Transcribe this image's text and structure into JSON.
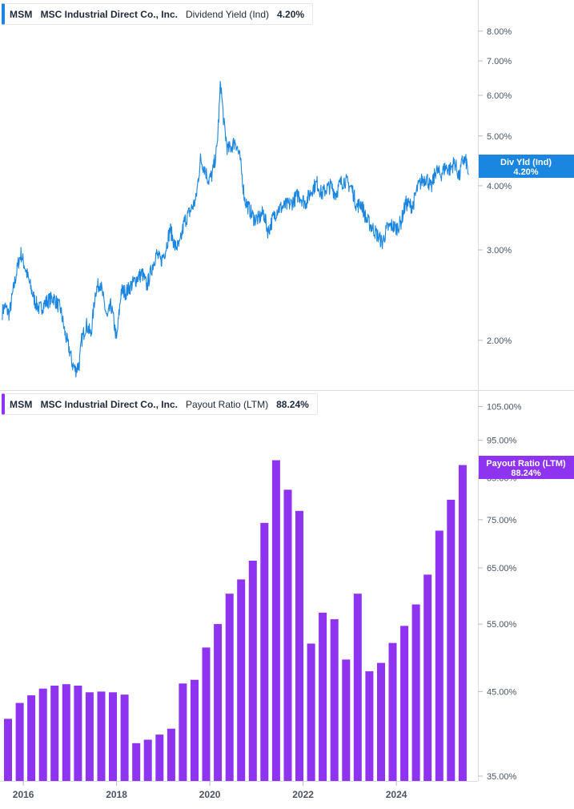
{
  "chart_data": [
    {
      "type": "line",
      "ticker": "MSM",
      "company": "MSC Industrial Direct Co., Inc.",
      "metric": "Dividend Yield (Ind)",
      "current_value": "4.20%",
      "current_badge": {
        "line1": "Div Yld (Ind)",
        "line2": "4.20%"
      },
      "color": "#1a86e0",
      "scale": "log",
      "ylim": [
        1.6,
        9.2
      ],
      "y_ticks": [
        "2.00%",
        "3.00%",
        "4.00%",
        "5.00%",
        "6.00%",
        "7.00%",
        "8.00%"
      ],
      "y_tick_values": [
        2,
        3,
        4,
        5,
        6,
        7,
        8
      ],
      "x_range": [
        2015.5,
        2025.75
      ],
      "x": [
        2015.55,
        2015.6,
        2015.7,
        2015.8,
        2015.9,
        2015.95,
        2016.05,
        2016.15,
        2016.25,
        2016.35,
        2016.5,
        2016.65,
        2016.8,
        2016.9,
        2017.0,
        2017.05,
        2017.12,
        2017.2,
        2017.25,
        2017.35,
        2017.45,
        2017.55,
        2017.65,
        2017.7,
        2017.8,
        2017.88,
        2017.95,
        2018.0,
        2018.1,
        2018.2,
        2018.3,
        2018.45,
        2018.55,
        2018.65,
        2018.75,
        2018.85,
        2018.95,
        2019.05,
        2019.15,
        2019.25,
        2019.35,
        2019.45,
        2019.6,
        2019.7,
        2019.8,
        2019.9,
        2019.97,
        2020.05,
        2020.15,
        2020.2,
        2020.23,
        2020.3,
        2020.38,
        2020.45,
        2020.55,
        2020.65,
        2020.75,
        2020.85,
        2020.95,
        2021.05,
        2021.15,
        2021.25,
        2021.35,
        2021.45,
        2021.6,
        2021.75,
        2021.9,
        2022.05,
        2022.2,
        2022.3,
        2022.4,
        2022.5,
        2022.6,
        2022.7,
        2022.8,
        2022.9,
        2023.05,
        2023.15,
        2023.25,
        2023.35,
        2023.5,
        2023.6,
        2023.7,
        2023.8,
        2023.9,
        2024.0,
        2024.1,
        2024.2,
        2024.35,
        2024.45,
        2024.55,
        2024.65,
        2024.75,
        2024.85,
        2024.95,
        2025.05,
        2025.15,
        2025.25,
        2025.35,
        2025.42,
        2025.5,
        2025.55
      ],
      "y": [
        2.27,
        2.33,
        2.25,
        2.55,
        2.85,
        2.95,
        2.75,
        2.55,
        2.38,
        2.3,
        2.38,
        2.42,
        2.3,
        2.05,
        1.9,
        1.8,
        1.75,
        1.8,
        2.0,
        2.15,
        2.05,
        2.5,
        2.6,
        2.45,
        2.2,
        2.35,
        2.15,
        2.0,
        2.5,
        2.48,
        2.55,
        2.65,
        2.7,
        2.55,
        2.75,
        2.95,
        2.85,
        3.0,
        3.3,
        3.05,
        3.05,
        3.4,
        3.6,
        3.75,
        4.5,
        4.3,
        4.1,
        4.2,
        4.7,
        5.6,
        6.4,
        5.3,
        4.7,
        4.75,
        4.9,
        4.5,
        3.75,
        3.6,
        3.45,
        3.45,
        3.55,
        3.25,
        3.45,
        3.6,
        3.65,
        3.7,
        3.85,
        3.7,
        3.95,
        4.05,
        3.85,
        3.95,
        4.0,
        3.85,
        4.05,
        4.1,
        3.95,
        3.65,
        3.7,
        3.45,
        3.3,
        3.2,
        3.1,
        3.3,
        3.35,
        3.3,
        3.4,
        3.7,
        3.65,
        3.95,
        4.1,
        4.15,
        3.95,
        4.3,
        4.2,
        4.35,
        4.3,
        4.45,
        4.15,
        4.5,
        4.45,
        4.2
      ]
    },
    {
      "type": "bar",
      "ticker": "MSM",
      "company": "MSC Industrial Direct Co., Inc.",
      "metric": "Payout Ratio (LTM)",
      "current_value": "88.24%",
      "current_badge": {
        "line1": "Payout Ratio (LTM)",
        "line2": "88.24%"
      },
      "color": "#8e33f0",
      "scale": "log",
      "ylim": [
        34.5,
        110
      ],
      "y_ticks": [
        "35.00%",
        "45.00%",
        "55.00%",
        "65.00%",
        "75.00%",
        "85.00%",
        "95.00%",
        "105.00%"
      ],
      "y_tick_values": [
        35,
        45,
        55,
        65,
        75,
        85,
        95,
        105
      ],
      "x_range": [
        2015.5,
        2025.75
      ],
      "x": [
        2015.5,
        2015.75,
        2016.0,
        2016.25,
        2016.5,
        2016.75,
        2017.0,
        2017.25,
        2017.5,
        2017.75,
        2018.0,
        2018.25,
        2018.5,
        2018.75,
        2019.0,
        2019.25,
        2019.5,
        2019.75,
        2020.0,
        2020.25,
        2020.5,
        2020.75,
        2021.0,
        2021.25,
        2021.5,
        2021.75,
        2022.0,
        2022.25,
        2022.5,
        2022.75,
        2023.0,
        2023.25,
        2023.5,
        2023.75,
        2024.0,
        2024.25,
        2024.5,
        2024.75,
        2025.0,
        2025.25
      ],
      "values": [
        41.5,
        43.5,
        44.5,
        45.4,
        45.8,
        46.0,
        45.8,
        44.9,
        45.0,
        44.9,
        44.6,
        38.6,
        39.0,
        39.6,
        40.3,
        46.1,
        46.6,
        51.3,
        55.0,
        60.2,
        62.8,
        66.4,
        74.3,
        89.5,
        82.0,
        77.0,
        51.9,
        56.9,
        55.8,
        49.5,
        60.2,
        47.8,
        49.0,
        52.0,
        54.7,
        58.3,
        63.7,
        72.6,
        79.6,
        88.24
      ]
    }
  ],
  "x_axis": {
    "tick_labels": [
      "2016",
      "2018",
      "2020",
      "2022",
      "2024"
    ],
    "tick_values": [
      2016,
      2018,
      2020,
      2022,
      2024
    ]
  }
}
